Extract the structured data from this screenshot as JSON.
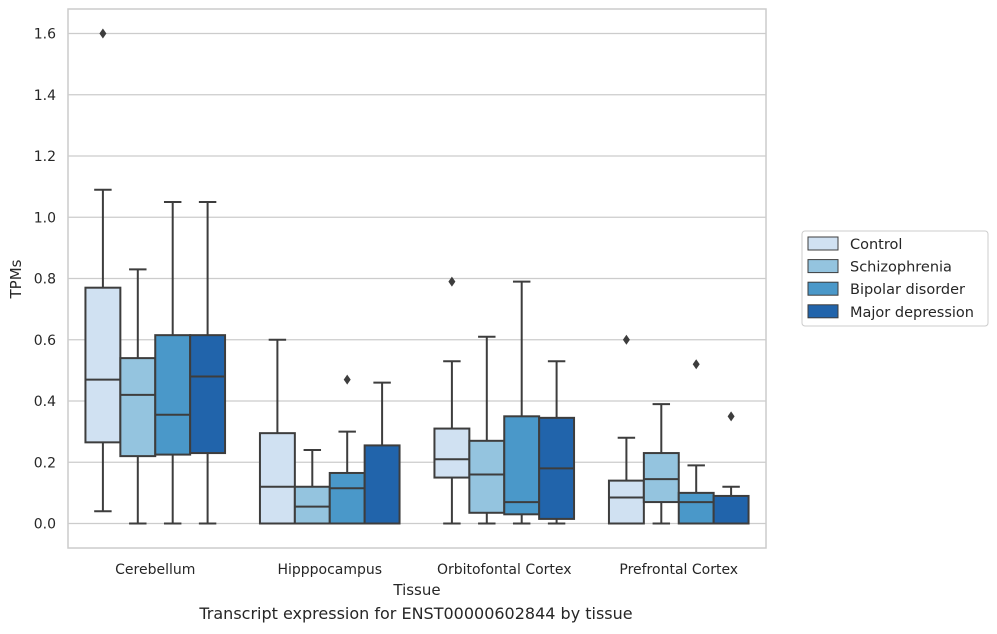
{
  "caption": "Transcript expression for ENST00000602844 by tissue",
  "chart_data": {
    "type": "box",
    "xlabel": "Tissue",
    "ylabel": "TPMs",
    "ylim": [
      -0.08,
      1.68
    ],
    "yticks": [
      0.0,
      0.2,
      0.4,
      0.6,
      0.8,
      1.0,
      1.2,
      1.4,
      1.6
    ],
    "ytick_labels": [
      "0.0",
      "0.2",
      "0.4",
      "0.6",
      "0.8",
      "1.0",
      "1.2",
      "1.4",
      "1.6"
    ],
    "grid": true,
    "legend_position": "right",
    "categories": [
      "Cerebellum",
      "Hipppocampus",
      "Orbitofontal Cortex",
      "Prefrontal Cortex"
    ],
    "series": [
      {
        "name": "Control",
        "color": "#d0e1f2",
        "boxes": [
          {
            "whislo": 0.04,
            "q1": 0.265,
            "med": 0.47,
            "q3": 0.77,
            "whishi": 1.09,
            "fliers": [
              1.6
            ]
          },
          {
            "whislo": 0.0,
            "q1": 0.0,
            "med": 0.12,
            "q3": 0.295,
            "whishi": 0.6,
            "fliers": []
          },
          {
            "whislo": 0.0,
            "q1": 0.15,
            "med": 0.21,
            "q3": 0.31,
            "whishi": 0.53,
            "fliers": [
              0.79
            ]
          },
          {
            "whislo": 0.0,
            "q1": 0.0,
            "med": 0.085,
            "q3": 0.14,
            "whishi": 0.28,
            "fliers": [
              0.6
            ]
          }
        ]
      },
      {
        "name": "Schizophrenia",
        "color": "#94c4df",
        "boxes": [
          {
            "whislo": 0.0,
            "q1": 0.22,
            "med": 0.42,
            "q3": 0.54,
            "whishi": 0.83,
            "fliers": []
          },
          {
            "whislo": 0.0,
            "q1": 0.0,
            "med": 0.055,
            "q3": 0.12,
            "whishi": 0.24,
            "fliers": []
          },
          {
            "whislo": 0.0,
            "q1": 0.035,
            "med": 0.16,
            "q3": 0.27,
            "whishi": 0.61,
            "fliers": []
          },
          {
            "whislo": 0.0,
            "q1": 0.07,
            "med": 0.145,
            "q3": 0.23,
            "whishi": 0.39,
            "fliers": []
          }
        ]
      },
      {
        "name": "Bipolar disorder",
        "color": "#4a98c9",
        "boxes": [
          {
            "whislo": 0.0,
            "q1": 0.225,
            "med": 0.355,
            "q3": 0.615,
            "whishi": 1.05,
            "fliers": []
          },
          {
            "whislo": 0.0,
            "q1": 0.0,
            "med": 0.115,
            "q3": 0.165,
            "whishi": 0.3,
            "fliers": [
              0.47
            ]
          },
          {
            "whislo": 0.0,
            "q1": 0.03,
            "med": 0.07,
            "q3": 0.35,
            "whishi": 0.79,
            "fliers": []
          },
          {
            "whislo": 0.0,
            "q1": 0.0,
            "med": 0.07,
            "q3": 0.1,
            "whishi": 0.19,
            "fliers": [
              0.52
            ]
          }
        ]
      },
      {
        "name": "Major depression",
        "color": "#2164ab",
        "boxes": [
          {
            "whislo": 0.0,
            "q1": 0.23,
            "med": 0.48,
            "q3": 0.615,
            "whishi": 1.05,
            "fliers": []
          },
          {
            "whislo": 0.0,
            "q1": 0.0,
            "med": 0.0,
            "q3": 0.255,
            "whishi": 0.46,
            "fliers": []
          },
          {
            "whislo": 0.0,
            "q1": 0.015,
            "med": 0.18,
            "q3": 0.345,
            "whishi": 0.53,
            "fliers": []
          },
          {
            "whislo": 0.0,
            "q1": 0.0,
            "med": 0.0,
            "q3": 0.09,
            "whishi": 0.12,
            "fliers": [
              0.35
            ]
          }
        ]
      }
    ]
  }
}
